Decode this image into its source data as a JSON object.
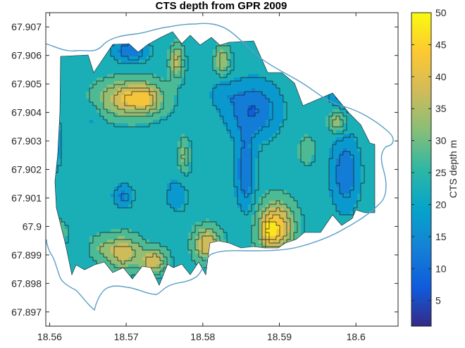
{
  "chart_data": {
    "type": "heatmap",
    "title": "CTS depth from GPR 2009",
    "xlabel": "",
    "ylabel": "",
    "xlim": [
      18.5595,
      18.6055
    ],
    "ylim": [
      67.8965,
      67.9075
    ],
    "x_ticks": [
      {
        "value": 18.56,
        "label": "18.56"
      },
      {
        "value": 18.57,
        "label": "18.57"
      },
      {
        "value": 18.58,
        "label": "18.58"
      },
      {
        "value": 18.59,
        "label": "18.59"
      },
      {
        "value": 18.6,
        "label": "18.6"
      }
    ],
    "y_ticks": [
      {
        "value": 67.897,
        "label": "67.897"
      },
      {
        "value": 67.898,
        "label": "67.898"
      },
      {
        "value": 67.899,
        "label": "67.899"
      },
      {
        "value": 67.9,
        "label": "67.9"
      },
      {
        "value": 67.901,
        "label": "67.901"
      },
      {
        "value": 67.902,
        "label": "67.902"
      },
      {
        "value": 67.903,
        "label": "67.903"
      },
      {
        "value": 67.904,
        "label": "67.904"
      },
      {
        "value": 67.905,
        "label": "67.905"
      },
      {
        "value": 67.906,
        "label": "67.906"
      },
      {
        "value": 67.907,
        "label": "67.907"
      }
    ],
    "colorbar": {
      "label": "CTS depth m",
      "range": [
        1,
        50
      ],
      "colormap": "parula",
      "ticks": [
        {
          "value": 5,
          "label": "5"
        },
        {
          "value": 10,
          "label": "10"
        },
        {
          "value": 15,
          "label": "15"
        },
        {
          "value": 20,
          "label": "20"
        },
        {
          "value": 25,
          "label": "25"
        },
        {
          "value": 30,
          "label": "30"
        },
        {
          "value": 35,
          "label": "35"
        },
        {
          "value": 40,
          "label": "40"
        },
        {
          "value": 45,
          "label": "45"
        },
        {
          "value": 50,
          "label": "50"
        }
      ]
    },
    "background_level": 23,
    "features": [
      {
        "x": 18.5705,
        "y": 67.9045,
        "sx": 0.0028,
        "sy": 0.00045,
        "amp": 18
      },
      {
        "x": 18.5725,
        "y": 67.9045,
        "sx": 0.0012,
        "sy": 0.0003,
        "amp": 7
      },
      {
        "x": 18.5765,
        "y": 67.9058,
        "sx": 0.0006,
        "sy": 0.0004,
        "amp": 14
      },
      {
        "x": 18.5825,
        "y": 67.9058,
        "sx": 0.0007,
        "sy": 0.00035,
        "amp": 12
      },
      {
        "x": 18.5775,
        "y": 67.9025,
        "sx": 0.0005,
        "sy": 0.0004,
        "amp": 9
      },
      {
        "x": 18.5865,
        "y": 67.9041,
        "sx": 0.0024,
        "sy": 0.0007,
        "amp": -13
      },
      {
        "x": 18.5825,
        "y": 67.9047,
        "sx": 0.0012,
        "sy": 0.00035,
        "amp": -5
      },
      {
        "x": 18.5855,
        "y": 67.9019,
        "sx": 0.0009,
        "sy": 0.0009,
        "amp": -12
      },
      {
        "x": 18.5895,
        "y": 67.9,
        "sx": 0.0016,
        "sy": 0.0006,
        "amp": 22
      },
      {
        "x": 18.5885,
        "y": 67.8998,
        "sx": 0.0006,
        "sy": 0.0003,
        "amp": 8
      },
      {
        "x": 18.5695,
        "y": 67.8991,
        "sx": 0.0016,
        "sy": 0.0004,
        "amp": 16
      },
      {
        "x": 18.5735,
        "y": 67.8988,
        "sx": 0.0012,
        "sy": 0.0003,
        "amp": 16
      },
      {
        "x": 18.5665,
        "y": 67.8993,
        "sx": 0.001,
        "sy": 0.0003,
        "amp": 5
      },
      {
        "x": 18.5805,
        "y": 67.8994,
        "sx": 0.0012,
        "sy": 0.0004,
        "amp": 17
      },
      {
        "x": 18.5605,
        "y": 67.8998,
        "sx": 0.002,
        "sy": 0.0006,
        "amp": 3
      },
      {
        "x": 18.5695,
        "y": 67.9011,
        "sx": 0.0009,
        "sy": 0.0003,
        "amp": -9
      },
      {
        "x": 18.5765,
        "y": 67.9011,
        "sx": 0.001,
        "sy": 0.0004,
        "amp": -7
      },
      {
        "x": 18.5985,
        "y": 67.9019,
        "sx": 0.0013,
        "sy": 0.0009,
        "amp": -12
      },
      {
        "x": 18.5605,
        "y": 67.9029,
        "sx": 0.0006,
        "sy": 0.0006,
        "amp": -10
      },
      {
        "x": 18.5975,
        "y": 67.9037,
        "sx": 0.0008,
        "sy": 0.0003,
        "amp": 11
      },
      {
        "x": 18.5985,
        "y": 67.9047,
        "sx": 0.0015,
        "sy": 0.0004,
        "amp": -11
      },
      {
        "x": 18.5705,
        "y": 67.9062,
        "sx": 0.0016,
        "sy": 0.0003,
        "amp": -12
      },
      {
        "x": 18.6035,
        "y": 67.9027,
        "sx": 0.0004,
        "sy": 0.0008,
        "amp": -15
      },
      {
        "x": 18.5655,
        "y": 67.9038,
        "sx": 0.0006,
        "sy": 0.0004,
        "amp": -4
      },
      {
        "x": 18.5935,
        "y": 67.9027,
        "sx": 0.0012,
        "sy": 0.0006,
        "amp": 3
      }
    ]
  }
}
